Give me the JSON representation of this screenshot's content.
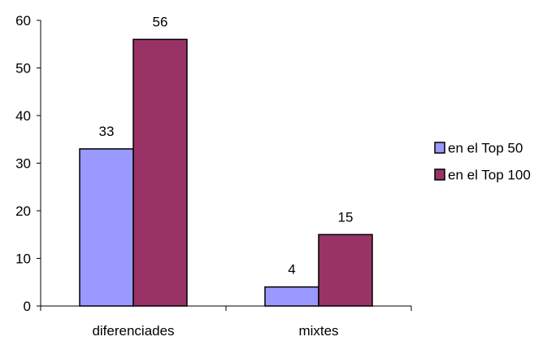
{
  "chart_data": {
    "type": "bar",
    "title": "",
    "xlabel": "",
    "ylabel": "",
    "categories": [
      "diferenciades",
      "mixtes"
    ],
    "series": [
      {
        "name": "en el Top 50",
        "values": [
          33,
          4
        ],
        "color": "#9999ff"
      },
      {
        "name": "en el Top 100",
        "values": [
          56,
          15
        ],
        "color": "#993366"
      }
    ],
    "ylim": [
      0,
      60
    ],
    "yticks": [
      0,
      10,
      20,
      30,
      40,
      50,
      60
    ],
    "grid": false,
    "legend_position": "right"
  }
}
